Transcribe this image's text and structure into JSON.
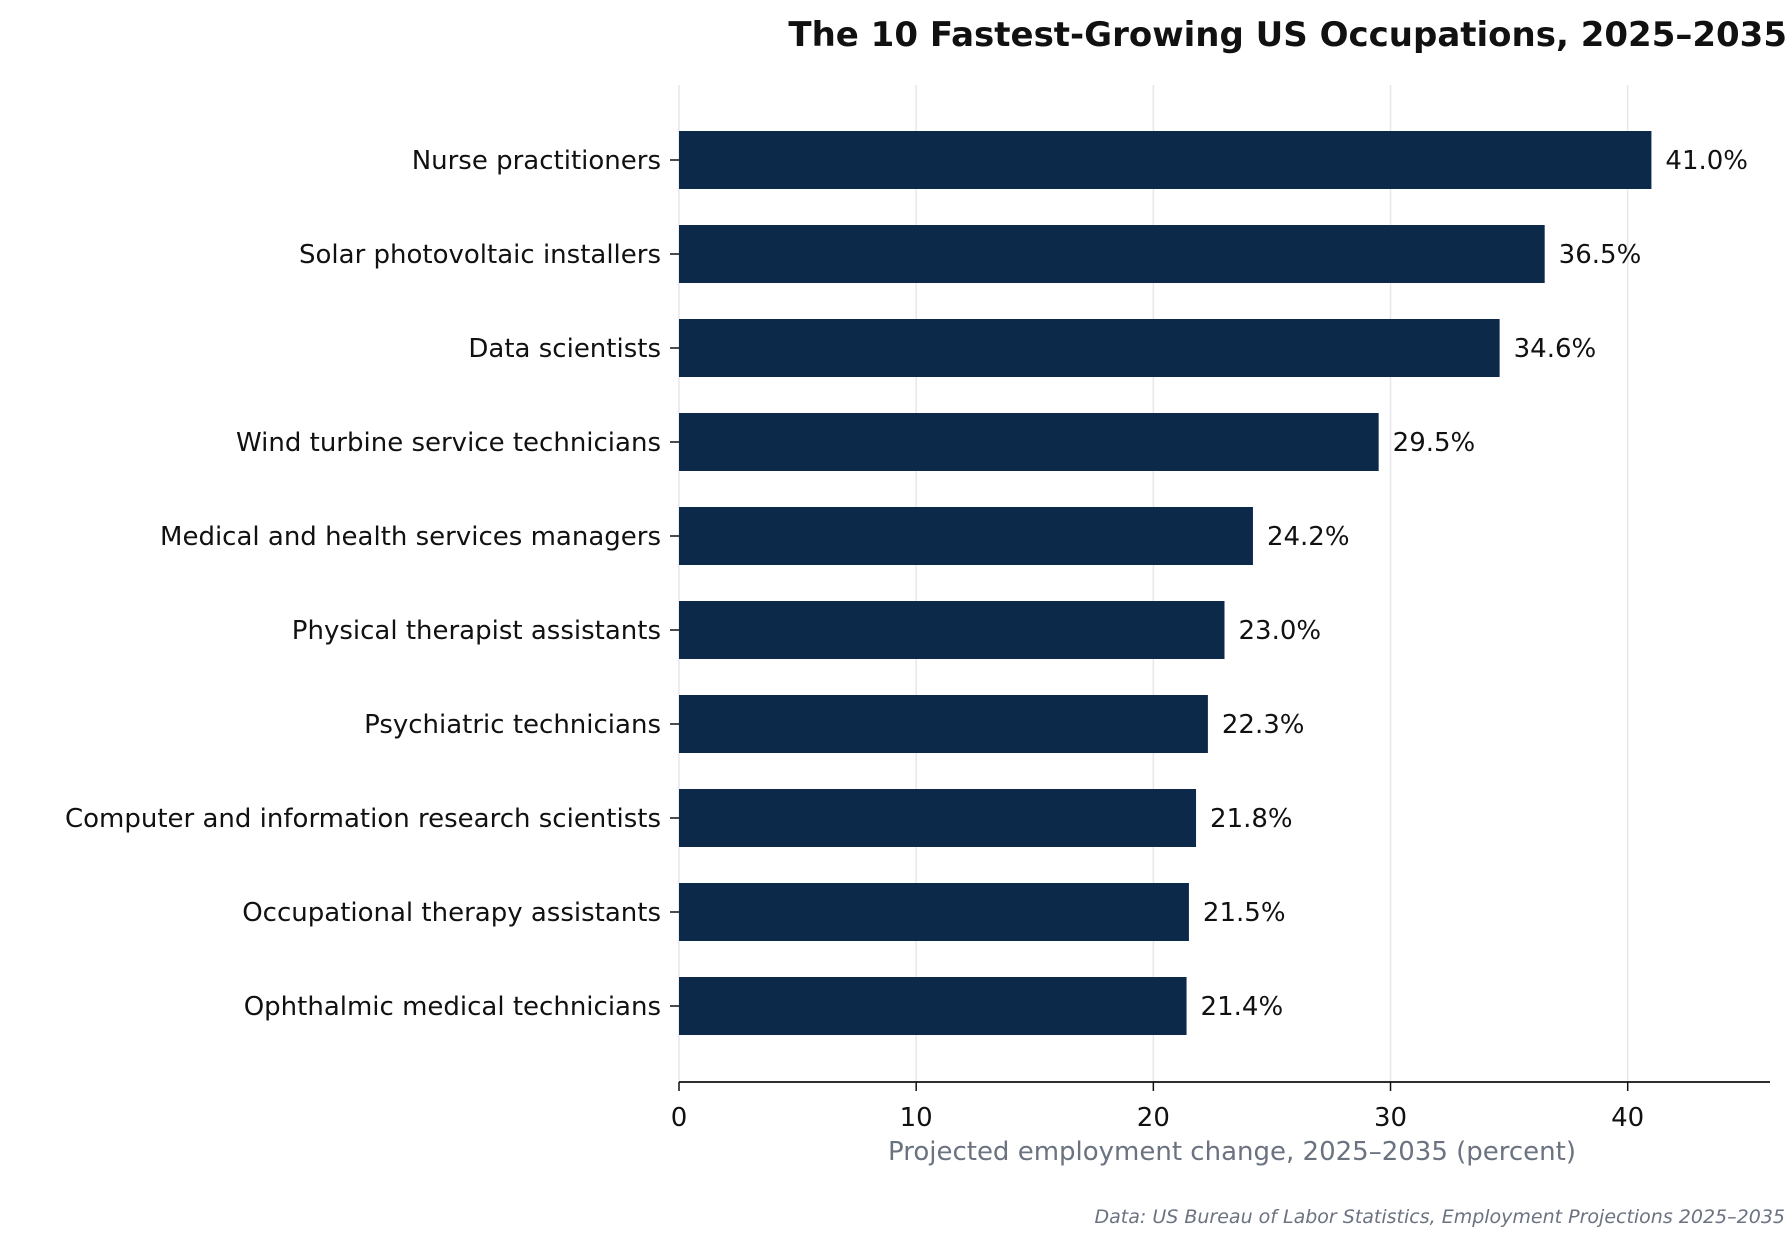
{
  "chart_data": {
    "type": "bar",
    "orientation": "horizontal",
    "title": "The 10 Fastest-Growing US Occupations, 2025–2035",
    "xlabel": "Projected employment change, 2025–2035 (percent)",
    "ylabel": "",
    "source": "Data: US Bureau of Labor Statistics, Employment Projections 2025–2035",
    "categories": [
      "Nurse practitioners",
      "Solar photovoltaic installers",
      "Data scientists",
      "Wind turbine service technicians",
      "Medical and health services managers",
      "Physical therapist assistants",
      "Psychiatric technicians",
      "Computer and information research scientists",
      "Occupational therapy assistants",
      "Ophthalmic medical technicians"
    ],
    "values": [
      41.0,
      36.5,
      34.6,
      29.5,
      24.2,
      23.0,
      22.3,
      21.8,
      21.5,
      21.4
    ],
    "value_labels": [
      "41.0%",
      "36.5%",
      "34.6%",
      "29.5%",
      "24.2%",
      "23.0%",
      "22.3%",
      "21.8%",
      "21.5%",
      "21.4%"
    ],
    "xlim": [
      0,
      46
    ],
    "xticks": [
      0,
      10,
      20,
      30,
      40
    ],
    "grid": "vertical",
    "legend": "none",
    "colors": {
      "bar": "#0d2949",
      "grid": "#e5e7eb",
      "axis": "#111111",
      "muted": "#6b7280"
    }
  }
}
